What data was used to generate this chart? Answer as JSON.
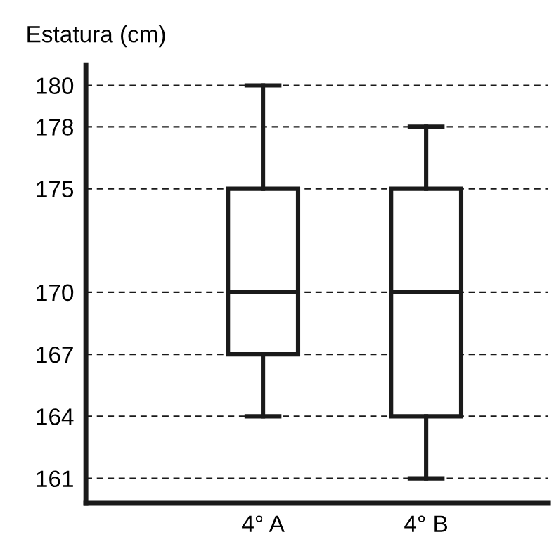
{
  "chart_data": {
    "type": "box",
    "ylabel": "Estatura (cm)",
    "categories": [
      "4° A",
      "4° B"
    ],
    "boxes": [
      {
        "low": 164,
        "q1": 167,
        "median": 170,
        "q3": 175,
        "high": 180
      },
      {
        "low": 161,
        "q1": 164,
        "median": 170,
        "q3": 175,
        "high": 178
      }
    ],
    "ylim": [
      159.8,
      181
    ],
    "yticks": [
      161,
      164,
      167,
      170,
      175,
      178,
      180
    ],
    "grid": "y",
    "color": "#1a1a1a"
  }
}
